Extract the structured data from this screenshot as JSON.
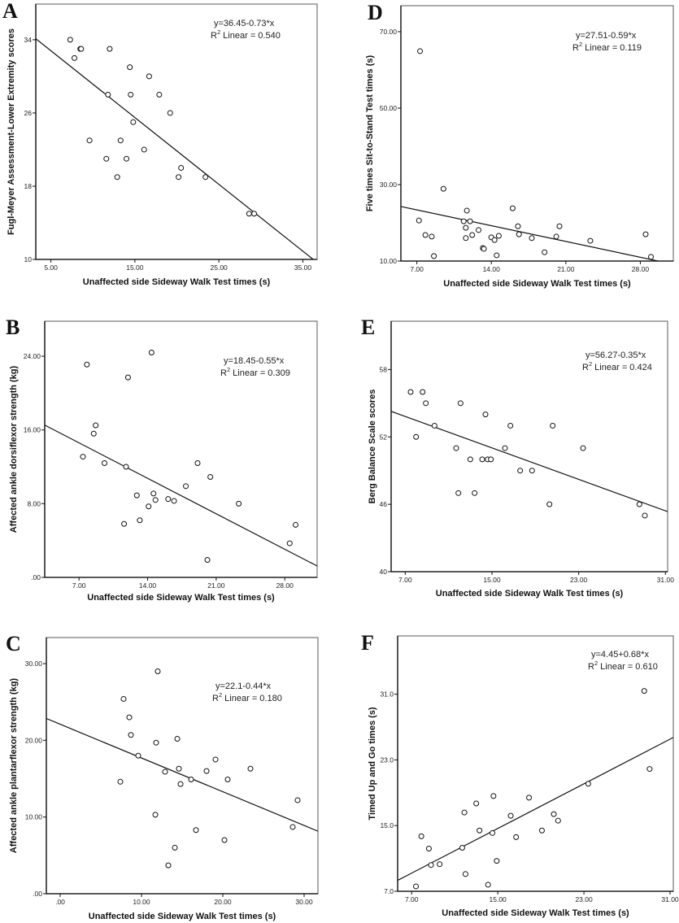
{
  "chart_data": [
    {
      "panel": "A",
      "type": "scatter",
      "title": "",
      "xlabel": "Unaffected side Sideway Walk Test times (s)",
      "ylabel": "Fugl-Meyer Assessment-Lower Extremity scores",
      "xticks": [
        5,
        15,
        25,
        35
      ],
      "xtick_labels": [
        "5.00",
        "15.00",
        "25.00",
        "35.00"
      ],
      "yticks": [
        10,
        18,
        26,
        34
      ],
      "ytick_labels": [
        "10",
        "18",
        "26",
        "34"
      ],
      "xlim": [
        3.2,
        36.7
      ],
      "ylim": [
        10,
        37.9
      ],
      "fit": {
        "intercept": 36.45,
        "slope": -0.73
      },
      "equation": "y=36.45-0.73*x",
      "r2_prefix": "R",
      "r2_sup": "2",
      "r2_text": " Linear = 0.540",
      "points": [
        [
          7.3,
          34
        ],
        [
          8.5,
          33
        ],
        [
          8.6,
          33
        ],
        [
          12.0,
          33
        ],
        [
          7.8,
          32
        ],
        [
          14.4,
          31
        ],
        [
          16.7,
          30
        ],
        [
          11.8,
          28
        ],
        [
          14.5,
          28
        ],
        [
          17.9,
          28
        ],
        [
          19.2,
          26
        ],
        [
          14.8,
          25
        ],
        [
          9.6,
          23
        ],
        [
          13.3,
          23
        ],
        [
          16.1,
          22
        ],
        [
          11.6,
          21
        ],
        [
          14.0,
          21
        ],
        [
          20.5,
          20
        ],
        [
          12.9,
          19
        ],
        [
          20.2,
          19
        ],
        [
          23.4,
          19
        ],
        [
          28.6,
          15
        ],
        [
          29.2,
          15
        ]
      ]
    },
    {
      "panel": "D",
      "type": "scatter",
      "title": "",
      "xlabel": "Unaffected side Sideway Walk Test times (s)",
      "ylabel": "Five times Sit-to-Stand Test times (s)",
      "xticks": [
        7,
        14,
        21,
        28
      ],
      "xtick_labels": [
        "7.00",
        "14.00",
        "21.00",
        "28.00"
      ],
      "yticks": [
        10,
        30,
        50,
        70
      ],
      "ytick_labels": [
        "10.00",
        "30.00",
        "50.00",
        "70.00"
      ],
      "xlim": [
        5.5,
        31.1
      ],
      "ylim": [
        10,
        76.8
      ],
      "fit": {
        "intercept": 27.51,
        "slope": -0.59
      },
      "equation": "y=27.51-0.59*x",
      "r2_prefix": "R",
      "r2_sup": "2",
      "r2_text": " Linear = 0.119",
      "points": [
        [
          7.3,
          64.9
        ],
        [
          9.5,
          28.9
        ],
        [
          7.2,
          20.6
        ],
        [
          7.8,
          16.8
        ],
        [
          8.4,
          16.4
        ],
        [
          8.6,
          11.3
        ],
        [
          11.7,
          23.2
        ],
        [
          11.4,
          20.4
        ],
        [
          12.0,
          20.4
        ],
        [
          11.6,
          18.7
        ],
        [
          12.2,
          16.8
        ],
        [
          11.6,
          16.0
        ],
        [
          12.8,
          18.1
        ],
        [
          13.2,
          13.4
        ],
        [
          13.3,
          13.2
        ],
        [
          14.0,
          16.2
        ],
        [
          14.3,
          15.5
        ],
        [
          14.7,
          16.6
        ],
        [
          14.5,
          11.5
        ],
        [
          16.0,
          23.8
        ],
        [
          16.5,
          19.1
        ],
        [
          16.6,
          17.0
        ],
        [
          17.8,
          16.0
        ],
        [
          19.0,
          12.3
        ],
        [
          20.1,
          16.4
        ],
        [
          20.4,
          19.1
        ],
        [
          23.3,
          15.3
        ],
        [
          28.5,
          17.0
        ],
        [
          29.0,
          11.1
        ]
      ]
    },
    {
      "panel": "B",
      "type": "scatter",
      "title": "",
      "xlabel": "Unaffected side Sideway Walk Test times (s)",
      "ylabel": "Affected ankle dorsiflexor strength (kg)",
      "xticks": [
        7,
        14,
        21,
        28
      ],
      "xtick_labels": [
        "7.00",
        "14.00",
        "21.00",
        "28.00"
      ],
      "yticks": [
        0,
        8,
        16,
        24
      ],
      "ytick_labels": [
        ".00",
        "8.00",
        "16.00",
        "24.00"
      ],
      "xlim": [
        3.5,
        31.3
      ],
      "ylim": [
        0,
        27.8
      ],
      "fit": {
        "intercept": 18.45,
        "slope": -0.55
      },
      "equation": "y=18.45-0.55*x",
      "r2_prefix": "R",
      "r2_sup": "2",
      "r2_text": " Linear = 0.309",
      "points": [
        [
          14.4,
          24.4
        ],
        [
          7.8,
          23.1
        ],
        [
          12.0,
          21.7
        ],
        [
          8.7,
          16.5
        ],
        [
          8.5,
          15.6
        ],
        [
          7.4,
          13.1
        ],
        [
          9.6,
          12.4
        ],
        [
          11.8,
          12.0
        ],
        [
          19.1,
          12.4
        ],
        [
          20.4,
          10.9
        ],
        [
          17.9,
          9.9
        ],
        [
          12.9,
          8.9
        ],
        [
          14.6,
          9.1
        ],
        [
          14.8,
          8.4
        ],
        [
          16.1,
          8.5
        ],
        [
          16.7,
          8.3
        ],
        [
          14.1,
          7.7
        ],
        [
          13.2,
          6.2
        ],
        [
          11.6,
          5.8
        ],
        [
          20.1,
          1.9
        ],
        [
          23.3,
          8.0
        ],
        [
          29.1,
          5.7
        ],
        [
          28.5,
          3.7
        ]
      ]
    },
    {
      "panel": "E",
      "type": "scatter",
      "title": "",
      "xlabel": "Unaffected side Sideway Walk Test times (s)",
      "ylabel": "Berg Balance Scale scores",
      "xticks": [
        7,
        15,
        23,
        31
      ],
      "xtick_labels": [
        "7.00",
        "15.00",
        "23.00",
        "31.00"
      ],
      "yticks": [
        40,
        46,
        52,
        58
      ],
      "ytick_labels": [
        "40",
        "46",
        "52",
        "58"
      ],
      "xlim": [
        5.7,
        31.2
      ],
      "ylim": [
        40,
        62.3
      ],
      "fit": {
        "intercept": 56.27,
        "slope": -0.35
      },
      "equation": "y=56.27-0.35*x",
      "r2_prefix": "R",
      "r2_sup": "2",
      "r2_text": " Linear = 0.424",
      "points": [
        [
          7.5,
          56
        ],
        [
          8.6,
          56
        ],
        [
          8.9,
          55
        ],
        [
          12.1,
          55
        ],
        [
          14.4,
          54
        ],
        [
          9.7,
          53
        ],
        [
          16.7,
          53
        ],
        [
          20.6,
          53
        ],
        [
          8.0,
          52
        ],
        [
          11.7,
          51
        ],
        [
          16.2,
          51
        ],
        [
          23.4,
          51
        ],
        [
          13.0,
          50
        ],
        [
          14.1,
          50
        ],
        [
          14.6,
          50
        ],
        [
          14.9,
          50
        ],
        [
          17.6,
          49
        ],
        [
          18.7,
          49
        ],
        [
          11.9,
          47
        ],
        [
          13.4,
          47
        ],
        [
          20.3,
          46
        ],
        [
          28.6,
          46
        ],
        [
          29.1,
          45
        ]
      ]
    },
    {
      "panel": "C",
      "type": "scatter",
      "title": "",
      "xlabel": "Unaffected side Sideway Walk Test times (s)",
      "ylabel": "Affected ankle plantarflexor strength (kg)",
      "xticks": [
        0,
        10,
        20,
        30
      ],
      "xtick_labels": [
        ".00",
        "10.00",
        "20.00",
        "30.00"
      ],
      "yticks": [
        0,
        10,
        20,
        30
      ],
      "ytick_labels": [
        ".00",
        "10.00",
        "20.00",
        "30.00"
      ],
      "xlim": [
        -1.7,
        31.7
      ],
      "ylim": [
        0,
        33.4
      ],
      "fit": {
        "intercept": 22.1,
        "slope": -0.44
      },
      "equation": "y=22.1-0.44*x",
      "r2_prefix": "R",
      "r2_sup": "2",
      "r2_text": " Linear = 0.180",
      "points": [
        [
          12.0,
          29.0
        ],
        [
          7.8,
          25.4
        ],
        [
          8.5,
          23.0
        ],
        [
          8.7,
          20.7
        ],
        [
          14.4,
          20.2
        ],
        [
          11.8,
          19.7
        ],
        [
          9.6,
          18.0
        ],
        [
          19.1,
          17.5
        ],
        [
          14.6,
          16.3
        ],
        [
          23.4,
          16.3
        ],
        [
          18.0,
          16.0
        ],
        [
          12.9,
          15.9
        ],
        [
          16.1,
          14.9
        ],
        [
          20.6,
          14.9
        ],
        [
          7.4,
          14.6
        ],
        [
          14.8,
          14.3
        ],
        [
          29.2,
          12.2
        ],
        [
          11.7,
          10.3
        ],
        [
          28.6,
          8.7
        ],
        [
          16.7,
          8.3
        ],
        [
          20.2,
          7.0
        ],
        [
          14.1,
          6.0
        ],
        [
          13.3,
          3.7
        ]
      ]
    },
    {
      "panel": "F",
      "type": "scatter",
      "title": "",
      "xlabel": "Unaffected side Sideway Walk Test times (s)",
      "ylabel": "Timed Up and Go times (s)",
      "xticks": [
        7,
        15,
        23,
        31
      ],
      "xtick_labels": [
        "7.00",
        "15.00",
        "23.00",
        "31.00"
      ],
      "yticks": [
        7,
        15,
        23,
        31
      ],
      "ytick_labels": [
        "7.0",
        "15.0",
        "23.0",
        "31.0"
      ],
      "xlim": [
        5.7,
        31.3
      ],
      "ylim": [
        7,
        38.1
      ],
      "fit": {
        "intercept": 4.45,
        "slope": 0.68
      },
      "equation": "y=4.45+0.68*x",
      "r2_prefix": "R",
      "r2_sup": "2",
      "r2_text": " Linear = 0.610",
      "points": [
        [
          28.6,
          31.4
        ],
        [
          29.1,
          21.9
        ],
        [
          23.4,
          20.1
        ],
        [
          14.6,
          18.6
        ],
        [
          17.9,
          18.4
        ],
        [
          13.0,
          17.7
        ],
        [
          11.9,
          16.6
        ],
        [
          16.2,
          16.2
        ],
        [
          20.2,
          16.4
        ],
        [
          20.6,
          15.6
        ],
        [
          13.3,
          14.4
        ],
        [
          14.5,
          14.1
        ],
        [
          19.1,
          14.4
        ],
        [
          16.7,
          13.6
        ],
        [
          7.9,
          13.7
        ],
        [
          8.6,
          12.2
        ],
        [
          11.7,
          12.3
        ],
        [
          8.8,
          10.2
        ],
        [
          9.6,
          10.3
        ],
        [
          14.9,
          10.7
        ],
        [
          12.0,
          9.1
        ],
        [
          7.4,
          7.6
        ],
        [
          14.1,
          7.8
        ]
      ]
    }
  ]
}
